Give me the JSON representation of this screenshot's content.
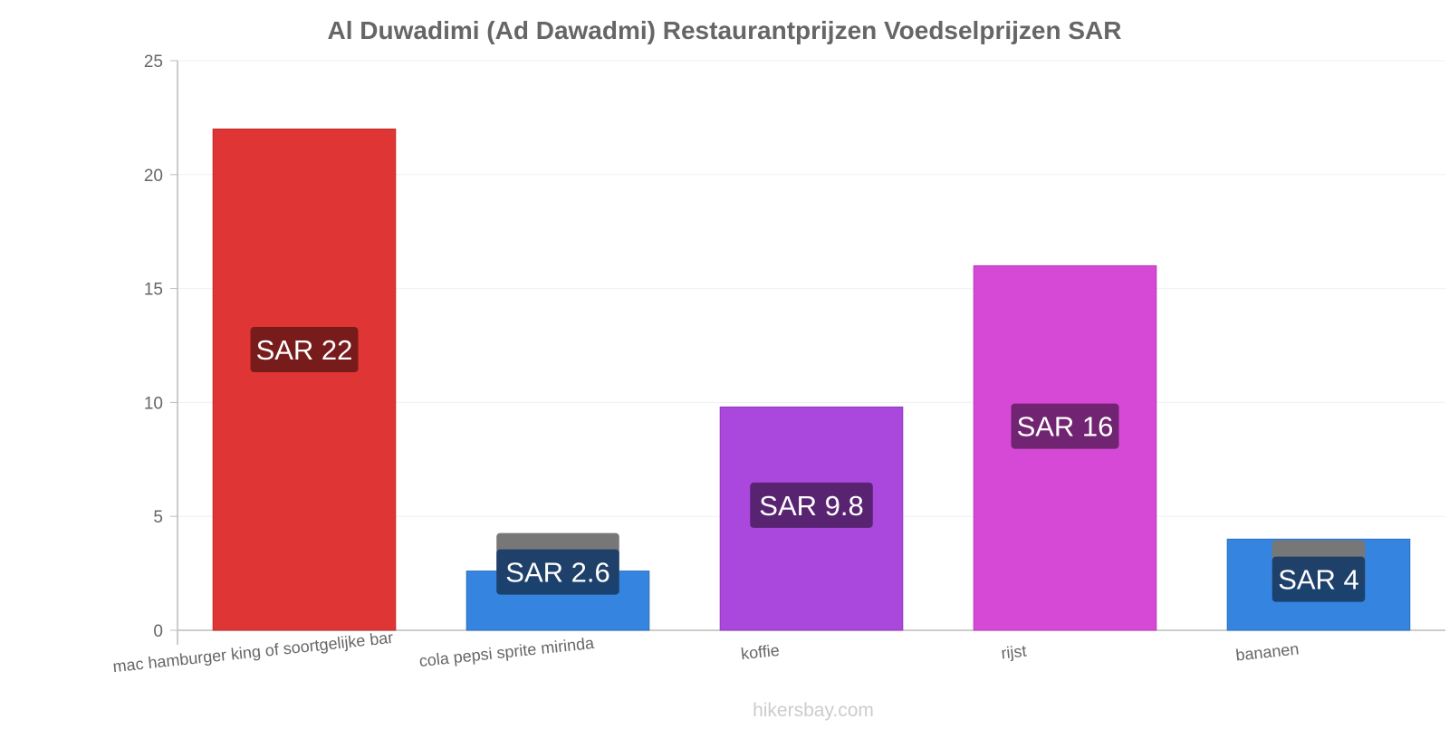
{
  "chart_data": {
    "type": "bar",
    "title": "Al Duwadimi (Ad Dawadmi) Restaurantprijzen Voedselprijzen SAR",
    "categories": [
      "mac hamburger king of soortgelijke bar",
      "cola pepsi sprite mirinda",
      "koffie",
      "rijst",
      "bananen"
    ],
    "values": [
      22,
      2.6,
      9.8,
      16,
      4
    ],
    "value_labels": [
      "SAR 22",
      "SAR 2.6",
      "SAR 9.8",
      "SAR 16",
      "SAR 4"
    ],
    "bar_colors": [
      "#e03535",
      "#3584e0",
      "#aa47dd",
      "#d649d6",
      "#3584e0"
    ],
    "label_bg_colors": [
      "#721a1a",
      "#1a3d68",
      "#53236b",
      "#6b236b",
      "#1a3d68"
    ],
    "label_bg_shadow_colors": [
      "",
      "#777777",
      "",
      "",
      "#777777"
    ],
    "yticks": [
      0,
      5,
      10,
      15,
      20,
      25
    ],
    "ylim": [
      0,
      25
    ],
    "xlabel": "",
    "ylabel": "",
    "grid": true,
    "legend": "none"
  },
  "watermark": "hikersbay.com",
  "colors": {
    "title": "#666666",
    "tick_text": "#666666",
    "axis_line": "#bbbbbb",
    "grid": "#f0f0f0",
    "watermark": "#cccccc",
    "value_text": "#ffffff"
  }
}
